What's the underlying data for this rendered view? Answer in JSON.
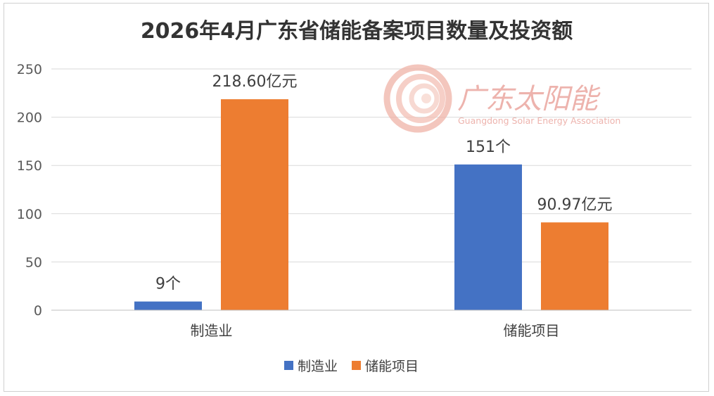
{
  "chart_data": {
    "type": "bar",
    "title": "2026年4月广东省储能备案项目数量及投资额",
    "categories": [
      "制造业",
      "储能项目"
    ],
    "ylim": [
      0,
      250
    ],
    "yticks": [
      0,
      50,
      100,
      150,
      200,
      250
    ],
    "grid": true,
    "legend_position": "bottom",
    "series": [
      {
        "name": "制造业",
        "color": "#4472C4",
        "values": [
          9,
          151
        ],
        "labels": [
          "9个",
          "151个"
        ]
      },
      {
        "name": "储能项目",
        "color": "#ED7D31",
        "values": [
          218.6,
          90.97
        ],
        "labels": [
          "218.60亿元",
          "90.97亿元"
        ]
      }
    ]
  },
  "watermark": {
    "name_cn": "广东太阳能",
    "name_en": "Guangdong Solar Energy Association",
    "color": "#e89a92"
  }
}
